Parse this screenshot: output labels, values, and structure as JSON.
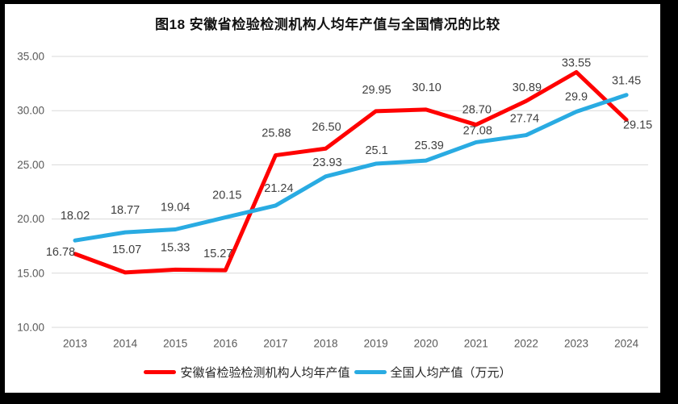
{
  "title": "图18 安徽省检验检测机构人均年产值与全国情况的比较",
  "chart_data": {
    "type": "line",
    "categories": [
      "2013",
      "2014",
      "2015",
      "2016",
      "2017",
      "2018",
      "2019",
      "2020",
      "2021",
      "2022",
      "2023",
      "2024"
    ],
    "series": [
      {
        "name": "安徽省检验检测机构人均年产值",
        "color": "#FF0000",
        "values": [
          16.78,
          15.07,
          15.33,
          15.27,
          25.88,
          26.5,
          29.95,
          30.1,
          28.7,
          30.89,
          33.55,
          29.15
        ],
        "value_labels": [
          "16.78",
          "15.07",
          "15.33",
          "15.27",
          "25.88",
          "26.50",
          "29.95",
          "30.10",
          "28.70",
          "30.89",
          "33.55",
          "29.15"
        ],
        "label_offsets": [
          [
            -18,
            -2
          ],
          [
            2,
            -28
          ],
          [
            0,
            -27
          ],
          [
            -9,
            -20
          ],
          [
            1,
            -27
          ],
          [
            1,
            -26
          ],
          [
            1,
            -26
          ],
          [
            1,
            -27
          ],
          [
            1,
            -18
          ],
          [
            1,
            -16
          ],
          [
            0,
            -11
          ],
          [
            14,
            7
          ]
        ]
      },
      {
        "name": "全国人均产值（万元）",
        "color": "#29ABE2",
        "values": [
          18.02,
          18.77,
          19.04,
          20.15,
          21.24,
          23.93,
          25.1,
          25.39,
          27.08,
          27.74,
          29.9,
          31.45
        ],
        "value_labels": [
          "18.02",
          "18.77",
          "19.04",
          "20.15",
          "21.24",
          "23.93",
          "25.1",
          "25.39",
          "27.08",
          "27.74",
          "29.9",
          "31.45"
        ],
        "label_offsets": [
          [
            0,
            -30
          ],
          [
            0,
            -27
          ],
          [
            0,
            -27
          ],
          [
            2,
            -27
          ],
          [
            4,
            -21
          ],
          [
            2,
            -17
          ],
          [
            1,
            -16
          ],
          [
            4,
            -18
          ],
          [
            2,
            -14
          ],
          [
            -2,
            -20
          ],
          [
            0,
            -18
          ],
          [
            0,
            -17
          ]
        ]
      }
    ],
    "title": "图18 安徽省检验检测机构人均年产值与全国情况的比较",
    "xlabel": "",
    "ylabel": "",
    "ylim": [
      10,
      35
    ],
    "yticks": [
      "35.00",
      "30.00",
      "25.00",
      "20.00",
      "15.00",
      "10.00"
    ],
    "ytick_values": [
      35,
      30,
      25,
      20,
      15,
      10
    ],
    "grid": true,
    "legend_position": "bottom",
    "grid_color": "#D9D9D9",
    "axis_text_color": "#595959",
    "data_label_color": "#404040",
    "background_color": "#FFFFFF",
    "frame_color": "#000000"
  }
}
